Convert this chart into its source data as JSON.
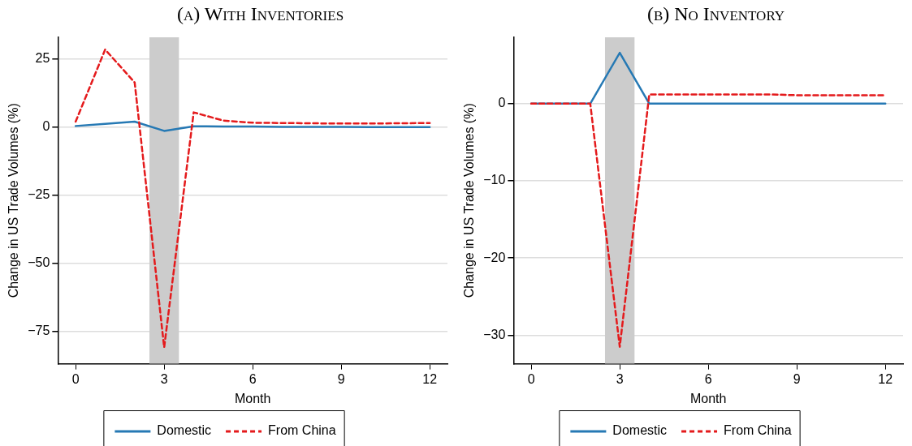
{
  "chart_data": [
    {
      "type": "line",
      "title": "(a) With Inventories",
      "xlabel": "Month",
      "ylabel": "Change in US Trade Volumes (%)",
      "xlim": [
        -0.6,
        12.6
      ],
      "xticks": [
        0,
        3,
        6,
        9,
        12
      ],
      "ylim": [
        -87,
        33
      ],
      "yticks": [
        {
          "value": 25,
          "label": "25"
        },
        {
          "value": 0,
          "label": "0"
        },
        {
          "value": -25,
          "label": "−25"
        },
        {
          "value": -50,
          "label": "−50"
        },
        {
          "value": -75,
          "label": "−75"
        }
      ],
      "grid": "y",
      "legend": "bottom",
      "bands": [
        {
          "axis": "x",
          "from": 2.5,
          "to": 3.5,
          "color": "#cccccc"
        }
      ],
      "series": [
        {
          "name": "Domestic",
          "color": "#2679b4",
          "line_style": "solid",
          "x": [
            0,
            1,
            2,
            3,
            4,
            5,
            6,
            7,
            8,
            9,
            10,
            11,
            12
          ],
          "values": [
            0.4,
            1.2,
            2,
            -1.4,
            0.3,
            0.2,
            0.2,
            0.1,
            0.1,
            0.1,
            0,
            0,
            0
          ]
        },
        {
          "name": "From China",
          "color": "#e41a1c",
          "line_style": "dashed",
          "x": [
            0,
            1,
            2,
            3,
            4,
            5,
            6,
            7,
            8,
            9,
            10,
            11,
            12
          ],
          "values": [
            2,
            28.5,
            16.4,
            -81,
            5.4,
            2.4,
            1.6,
            1.5,
            1.4,
            1.3,
            1.3,
            1.4,
            1.5
          ]
        }
      ]
    },
    {
      "type": "line",
      "title": "(b) No Inventory",
      "xlabel": "Month",
      "ylabel": "Change in US Trade Volumes (%)",
      "xlim": [
        -0.6,
        12.6
      ],
      "xticks": [
        0,
        3,
        6,
        9,
        12
      ],
      "ylim": [
        -33.7,
        8.6
      ],
      "yticks": [
        {
          "value": 0,
          "label": "0"
        },
        {
          "value": -10,
          "label": "−10"
        },
        {
          "value": -20,
          "label": "−20"
        },
        {
          "value": -30,
          "label": "−30"
        }
      ],
      "grid": "y",
      "legend": "bottom",
      "bands": [
        {
          "axis": "x",
          "from": 2.5,
          "to": 3.5,
          "color": "#cccccc"
        }
      ],
      "series": [
        {
          "name": "Domestic",
          "color": "#2679b4",
          "line_style": "solid",
          "x": [
            0,
            1,
            2,
            3,
            4,
            5,
            6,
            7,
            8,
            9,
            10,
            11,
            12
          ],
          "values": [
            0,
            0,
            0,
            6.6,
            0,
            0,
            0,
            0,
            0,
            0,
            0,
            0,
            0
          ]
        },
        {
          "name": "From China",
          "color": "#e41a1c",
          "line_style": "dashed",
          "x": [
            0,
            1,
            2,
            3,
            4,
            5,
            6,
            7,
            8,
            9,
            10,
            11,
            12
          ],
          "values": [
            0,
            0,
            0,
            -31.5,
            1.2,
            1.2,
            1.2,
            1.2,
            1.2,
            1.1,
            1.1,
            1.1,
            1.1
          ]
        }
      ]
    }
  ]
}
